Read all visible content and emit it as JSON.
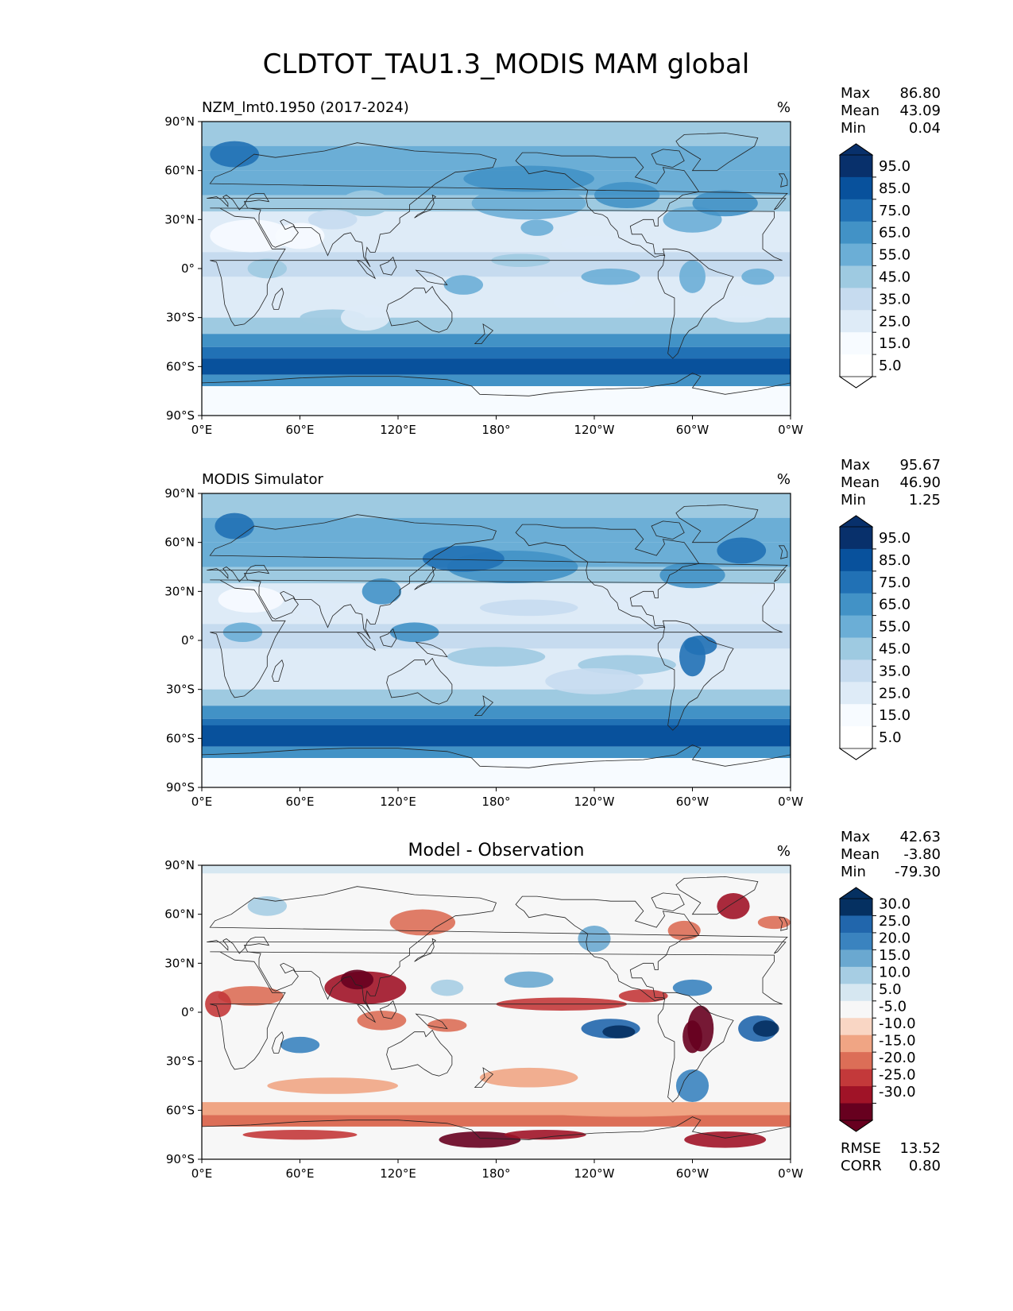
{
  "figure": {
    "title": "CLDTOT_TAU1.3_MODIS MAM global",
    "background": "#ffffff"
  },
  "chart_data": [
    {
      "type": "heatmap",
      "name": "test",
      "title_left": "NZM_lmt0.1950 (2017-2024)",
      "title_center": "",
      "units": "%",
      "x_ticks": [
        "0°E",
        "60°E",
        "120°E",
        "180°",
        "120°W",
        "60°W",
        "0°W"
      ],
      "y_ticks": [
        "90°N",
        "60°N",
        "30°N",
        "0°",
        "30°S",
        "60°S",
        "90°S"
      ],
      "xlim": [
        0,
        360
      ],
      "ylim": [
        -90,
        90
      ],
      "stats": [
        [
          "Max",
          "86.80"
        ],
        [
          "Mean",
          "43.09"
        ],
        [
          "Min",
          "0.04"
        ]
      ],
      "colorbar_labels": [
        "95.0",
        "85.0",
        "75.0",
        "65.0",
        "55.0",
        "45.0",
        "35.0",
        "25.0",
        "15.0",
        "5.0"
      ],
      "colorbar_colors": [
        "#08306b",
        "#08519c",
        "#2171b5",
        "#4292c6",
        "#6baed6",
        "#9ecae1",
        "#c6dbef",
        "#deebf7",
        "#f7fbff",
        "#ffffff"
      ],
      "colormap": "Blues"
    },
    {
      "type": "heatmap",
      "name": "reference",
      "title_left": "MODIS Simulator",
      "title_center": "",
      "units": "%",
      "x_ticks": [
        "0°E",
        "60°E",
        "120°E",
        "180°",
        "120°W",
        "60°W",
        "0°W"
      ],
      "y_ticks": [
        "90°N",
        "60°N",
        "30°N",
        "0°",
        "30°S",
        "60°S",
        "90°S"
      ],
      "xlim": [
        0,
        360
      ],
      "ylim": [
        -90,
        90
      ],
      "stats": [
        [
          "Max",
          "95.67"
        ],
        [
          "Mean",
          "46.90"
        ],
        [
          "Min",
          "1.25"
        ]
      ],
      "colorbar_labels": [
        "95.0",
        "85.0",
        "75.0",
        "65.0",
        "55.0",
        "45.0",
        "35.0",
        "25.0",
        "15.0",
        "5.0"
      ],
      "colorbar_colors": [
        "#08306b",
        "#08519c",
        "#2171b5",
        "#4292c6",
        "#6baed6",
        "#9ecae1",
        "#c6dbef",
        "#deebf7",
        "#f7fbff",
        "#ffffff"
      ],
      "colormap": "Blues"
    },
    {
      "type": "heatmap",
      "name": "diff",
      "title_left": "",
      "title_center": "Model - Observation",
      "units": "%",
      "x_ticks": [
        "0°E",
        "60°E",
        "120°E",
        "180°",
        "120°W",
        "60°W",
        "0°W"
      ],
      "y_ticks": [
        "90°N",
        "60°N",
        "30°N",
        "0°",
        "30°S",
        "60°S",
        "90°S"
      ],
      "xlim": [
        0,
        360
      ],
      "ylim": [
        -90,
        90
      ],
      "stats": [
        [
          "Max",
          "42.63"
        ],
        [
          "Mean",
          "-3.80"
        ],
        [
          "Min",
          "-79.30"
        ]
      ],
      "colorbar_labels": [
        "30.0",
        "25.0",
        "20.0",
        "15.0",
        "10.0",
        "5.0",
        "-5.0",
        "-10.0",
        "-15.0",
        "-20.0",
        "-25.0",
        "-30.0"
      ],
      "colorbar_colors": [
        "#053061",
        "#2166ac",
        "#3a83bf",
        "#6aa8d0",
        "#a6cde3",
        "#d6e7f1",
        "#f7f7f7",
        "#f9d6c4",
        "#f0a584",
        "#dc6e57",
        "#c3393a",
        "#a01327",
        "#67001f"
      ],
      "colormap": "RdBu_r",
      "footer_stats": [
        [
          "RMSE",
          "13.52"
        ],
        [
          "CORR",
          "0.80"
        ]
      ]
    }
  ]
}
